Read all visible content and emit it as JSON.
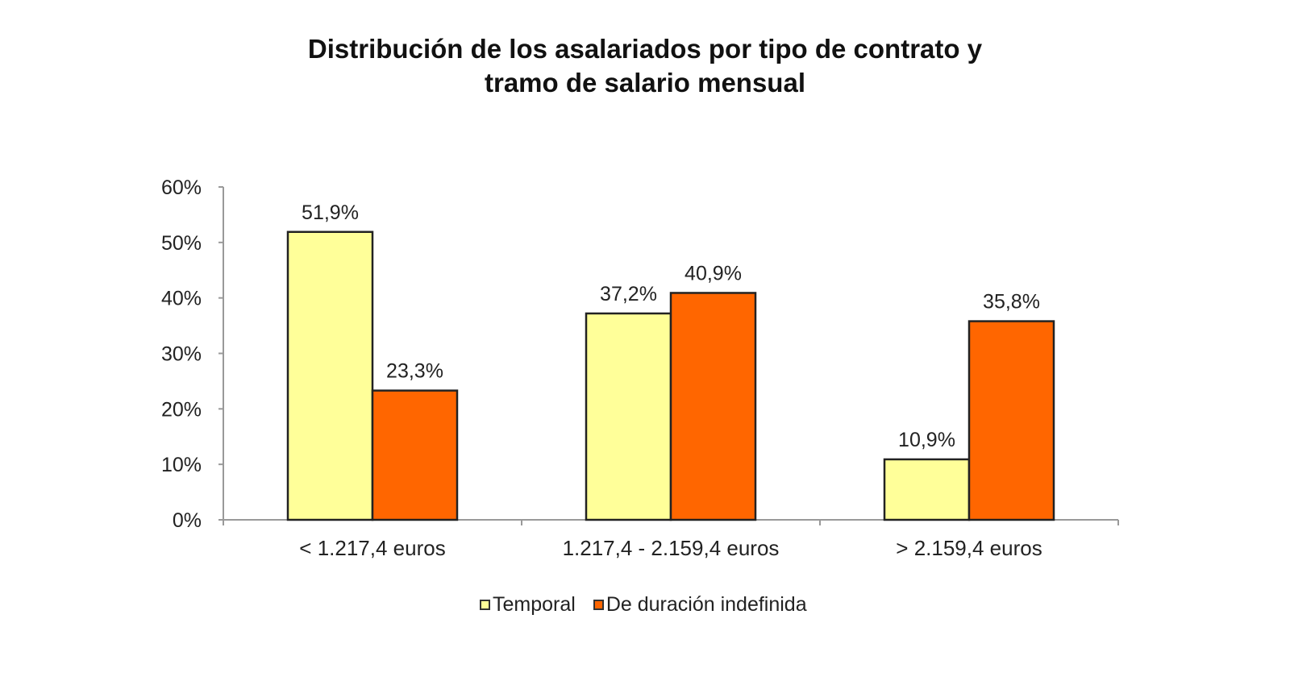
{
  "chart_data": {
    "type": "bar",
    "title_line1": "Distribución de los asalariados por tipo de contrato y",
    "title_line2": "tramo de salario mensual",
    "categories": [
      "< 1.217,4 euros",
      "1.217,4 - 2.159,4 euros",
      "> 2.159,4 euros"
    ],
    "series": [
      {
        "name": "Temporal",
        "values": [
          51.9,
          37.2,
          10.9
        ],
        "labels": [
          "51,9%",
          "37,2%",
          "10,9%"
        ],
        "color": "#FFFF99"
      },
      {
        "name": "De duración indefinida",
        "values": [
          23.3,
          40.9,
          35.8
        ],
        "labels": [
          "23,3%",
          "40,9%",
          "35,8%"
        ],
        "color": "#FF6600"
      }
    ],
    "ylim": [
      0,
      60
    ],
    "yticks": [
      "0%",
      "10%",
      "20%",
      "30%",
      "40%",
      "50%",
      "60%"
    ],
    "grid": false,
    "legend": "bottom"
  }
}
